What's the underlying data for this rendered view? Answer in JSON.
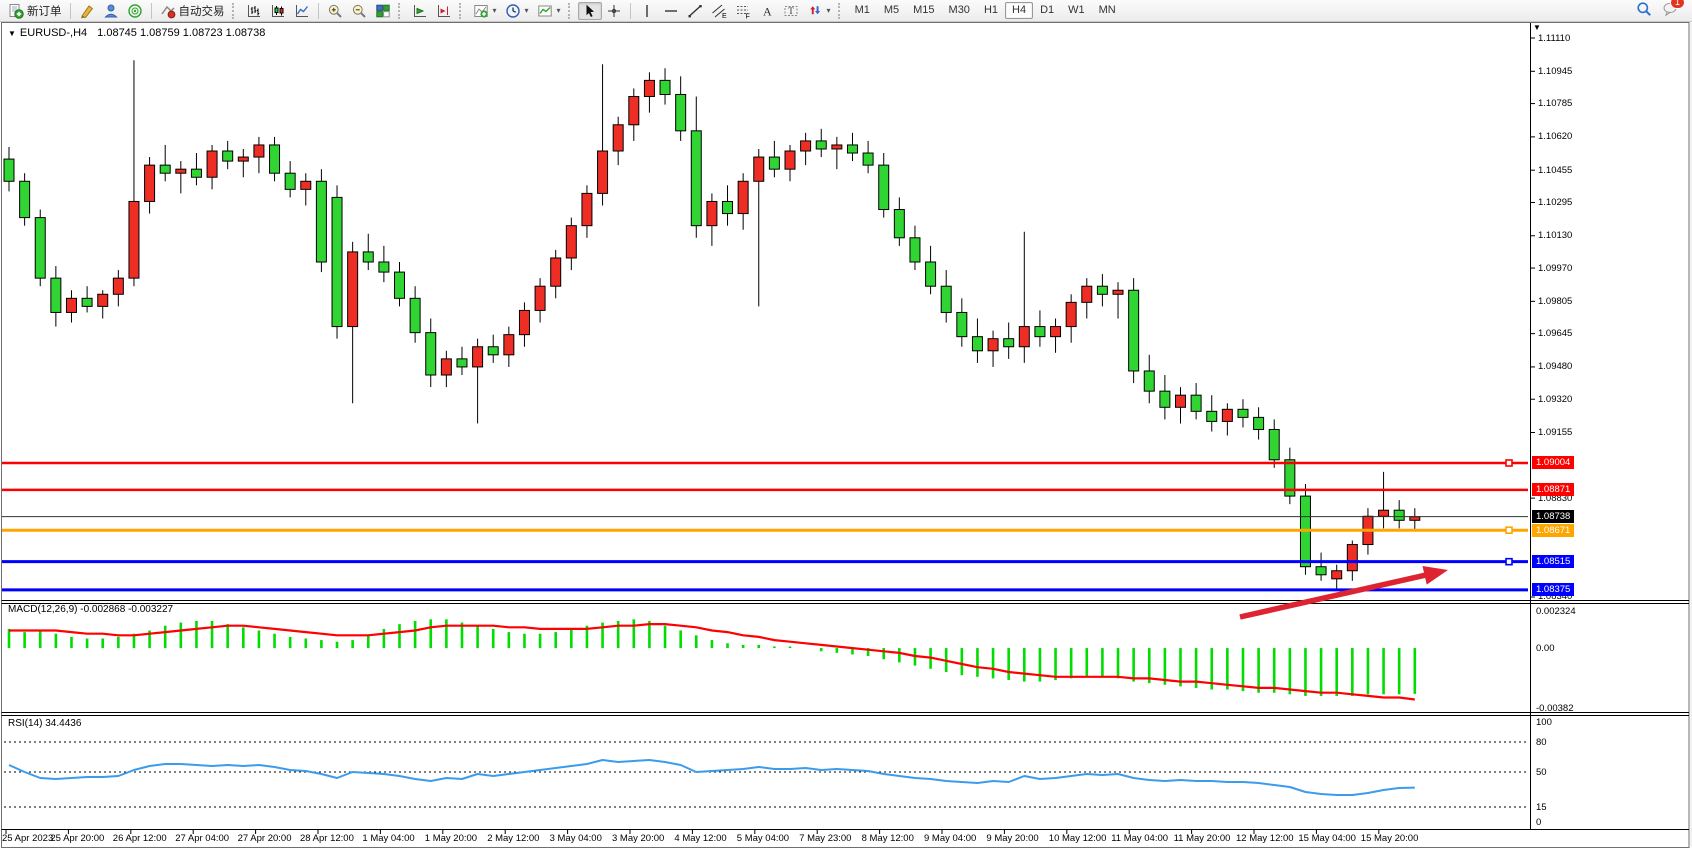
{
  "toolbar": {
    "items": [
      {
        "type": "button",
        "icon": "new-order-icon",
        "label": "新订单"
      },
      {
        "type": "sep"
      },
      {
        "type": "button",
        "icon": "crayon-icon"
      },
      {
        "type": "button",
        "icon": "profile-icon"
      },
      {
        "type": "button",
        "icon": "radar-icon"
      },
      {
        "type": "sep"
      },
      {
        "type": "button",
        "icon": "autotrade-icon",
        "label": "自动交易"
      },
      {
        "type": "grip"
      },
      {
        "type": "button",
        "icon": "bar-chart-icon"
      },
      {
        "type": "button",
        "icon": "candle-chart-icon"
      },
      {
        "type": "button",
        "icon": "line-chart-icon"
      },
      {
        "type": "sep"
      },
      {
        "type": "button",
        "icon": "zoom-in-icon"
      },
      {
        "type": "button",
        "icon": "zoom-out-icon"
      },
      {
        "type": "button",
        "icon": "tile-windows-icon"
      },
      {
        "type": "grip"
      },
      {
        "type": "button",
        "icon": "auto-scroll-icon"
      },
      {
        "type": "button",
        "icon": "chart-shift-icon"
      },
      {
        "type": "grip"
      },
      {
        "type": "button",
        "icon": "indicators-icon",
        "dropdown": true
      },
      {
        "type": "button",
        "icon": "periods-icon",
        "dropdown": true
      },
      {
        "type": "button",
        "icon": "templates-icon",
        "dropdown": true
      },
      {
        "type": "grip"
      },
      {
        "type": "button",
        "icon": "cursor-icon",
        "active": true
      },
      {
        "type": "button",
        "icon": "crosshair-icon"
      },
      {
        "type": "sep"
      },
      {
        "type": "button",
        "icon": "vline-tool-icon"
      },
      {
        "type": "button",
        "icon": "hline-tool-icon"
      },
      {
        "type": "button",
        "icon": "trendline-tool-icon"
      },
      {
        "type": "button",
        "icon": "channel-tool-icon"
      },
      {
        "type": "button",
        "icon": "fibonacci-tool-icon"
      },
      {
        "type": "button",
        "icon": "text-tool-icon"
      },
      {
        "type": "button",
        "icon": "label-tool-icon"
      },
      {
        "type": "button",
        "icon": "arrows-tool-icon",
        "dropdown": true
      },
      {
        "type": "grip"
      }
    ],
    "timeframes": [
      "M1",
      "M5",
      "M15",
      "M30",
      "H1",
      "H4",
      "D1",
      "W1",
      "MN"
    ],
    "active_timeframe": "H4",
    "search_icon": "search-icon",
    "chat_icon": "chat-icon",
    "chat_badge_count": "1"
  },
  "chart": {
    "title_symbol": "EURUSD-,H4",
    "title_ohlc": "1.08745 1.08759 1.08723 1.08738"
  },
  "indicators": {
    "macd_label": "MACD(12,26,9)",
    "macd_values": "-0.002868 -0.003227",
    "rsi_label": "RSI(14)",
    "rsi_value": "34.4436"
  },
  "chart_data": {
    "type": "candlestick",
    "symbol": "EURUSD-",
    "timeframe": "H4",
    "grid": false,
    "colors": {
      "up_candle": "#ee2e24",
      "down_candle": "#30d433",
      "candle_border": "#000000",
      "macd_histogram": "#00dd00",
      "macd_signal": "#ff0000",
      "rsi_line": "#3b9bed",
      "annotation_arrow": "#dd2430"
    },
    "y_axis_ticks": [
      "1.11110",
      "1.10945",
      "1.10785",
      "1.10620",
      "1.10455",
      "1.10295",
      "1.10130",
      "1.09970",
      "1.09805",
      "1.09645",
      "1.09480",
      "1.09320",
      "1.09155",
      "1.08830",
      "1.08340"
    ],
    "y_axis_range": [
      1.08325,
      1.11175
    ],
    "current_price": {
      "value": 1.08738,
      "label": "1.08738",
      "badge_color": "#000000"
    },
    "horizontal_lines": [
      {
        "price": 1.09004,
        "label": "1.09004",
        "color": "#ff0000",
        "width": 2.5,
        "marker": true
      },
      {
        "price": 1.08871,
        "label": "1.08871",
        "color": "#ff0000",
        "width": 2.5,
        "marker": false
      },
      {
        "price": 1.08671,
        "label": "1.08671",
        "color": "#ffa500",
        "width": 3,
        "marker": true
      },
      {
        "price": 1.08515,
        "label": "1.08515",
        "color": "#0000ff",
        "width": 3,
        "marker": true
      },
      {
        "price": 1.08375,
        "label": "1.08375",
        "color": "#0000ff",
        "width": 3,
        "marker": false
      }
    ],
    "x_labels": [
      "25 Apr 2023",
      "25 Apr 20:00",
      "26 Apr 12:00",
      "27 Apr 04:00",
      "27 Apr 20:00",
      "28 Apr 12:00",
      "1 May 04:00",
      "1 May 20:00",
      "2 May 12:00",
      "3 May 04:00",
      "3 May 20:00",
      "4 May 12:00",
      "5 May 04:00",
      "7 May 23:00",
      "8 May 12:00",
      "9 May 04:00",
      "9 May 20:00",
      "10 May 12:00",
      "11 May 04:00",
      "11 May 20:00",
      "12 May 12:00",
      "15 May 04:00",
      "15 May 20:00"
    ],
    "candles": [
      [
        1.1051,
        1.1057,
        1.1035,
        1.104
      ],
      [
        1.104,
        1.1044,
        1.1018,
        1.1022
      ],
      [
        1.1022,
        1.1026,
        1.0988,
        1.0992
      ],
      [
        1.0992,
        1.0998,
        1.0968,
        1.0975
      ],
      [
        1.0975,
        1.0986,
        1.097,
        1.0982
      ],
      [
        1.0982,
        1.0988,
        1.0975,
        1.0978
      ],
      [
        1.0978,
        1.0986,
        1.0972,
        1.0984
      ],
      [
        1.0984,
        1.0996,
        1.0978,
        1.0992
      ],
      [
        1.0992,
        1.11,
        1.0988,
        1.103
      ],
      [
        1.103,
        1.1052,
        1.1024,
        1.1048
      ],
      [
        1.1048,
        1.1058,
        1.104,
        1.1044
      ],
      [
        1.1044,
        1.105,
        1.1034,
        1.1046
      ],
      [
        1.1046,
        1.1054,
        1.1038,
        1.1042
      ],
      [
        1.1042,
        1.1058,
        1.1036,
        1.1055
      ],
      [
        1.1055,
        1.106,
        1.1046,
        1.105
      ],
      [
        1.105,
        1.1056,
        1.1042,
        1.1052
      ],
      [
        1.1052,
        1.1062,
        1.1044,
        1.1058
      ],
      [
        1.1058,
        1.1062,
        1.104,
        1.1044
      ],
      [
        1.1044,
        1.105,
        1.1032,
        1.1036
      ],
      [
        1.1036,
        1.1044,
        1.1028,
        1.104
      ],
      [
        1.104,
        1.1046,
        1.0995,
        1.1
      ],
      [
        1.1032,
        1.1038,
        1.0962,
        1.0968
      ],
      [
        1.0968,
        1.101,
        1.093,
        1.1005
      ],
      [
        1.1005,
        1.1014,
        1.0996,
        1.1
      ],
      [
        1.1,
        1.1008,
        1.099,
        1.0995
      ],
      [
        1.0995,
        1.1,
        1.0978,
        1.0982
      ],
      [
        1.0982,
        1.0988,
        1.096,
        1.0965
      ],
      [
        1.0965,
        1.0972,
        1.0938,
        1.0944
      ],
      [
        1.0944,
        1.0956,
        1.0938,
        1.0952
      ],
      [
        1.0952,
        1.0958,
        1.0944,
        1.0948
      ],
      [
        1.0948,
        1.0962,
        1.092,
        1.0958
      ],
      [
        1.0958,
        1.0964,
        1.095,
        1.0954
      ],
      [
        1.0954,
        1.0968,
        1.0948,
        1.0964
      ],
      [
        1.0964,
        1.098,
        1.0958,
        1.0976
      ],
      [
        1.0976,
        1.0992,
        1.097,
        1.0988
      ],
      [
        1.0988,
        1.1006,
        1.0982,
        1.1002
      ],
      [
        1.1002,
        1.1022,
        1.0996,
        1.1018
      ],
      [
        1.1018,
        1.1038,
        1.1012,
        1.1034
      ],
      [
        1.1034,
        1.1098,
        1.1028,
        1.1055
      ],
      [
        1.1055,
        1.1072,
        1.1048,
        1.1068
      ],
      [
        1.1068,
        1.1086,
        1.106,
        1.1082
      ],
      [
        1.1082,
        1.1094,
        1.1074,
        1.109
      ],
      [
        1.109,
        1.1096,
        1.1078,
        1.1083
      ],
      [
        1.1083,
        1.1092,
        1.106,
        1.1065
      ],
      [
        1.1065,
        1.1082,
        1.1012,
        1.1018
      ],
      [
        1.1018,
        1.1034,
        1.1008,
        1.103
      ],
      [
        1.103,
        1.1038,
        1.1018,
        1.1024
      ],
      [
        1.1024,
        1.1044,
        1.1016,
        1.104
      ],
      [
        1.104,
        1.1056,
        1.0978,
        1.1052
      ],
      [
        1.1052,
        1.106,
        1.1042,
        1.1046
      ],
      [
        1.1046,
        1.1058,
        1.104,
        1.1055
      ],
      [
        1.1055,
        1.1064,
        1.1048,
        1.106
      ],
      [
        1.106,
        1.1066,
        1.1052,
        1.1056
      ],
      [
        1.1056,
        1.1062,
        1.1046,
        1.1058
      ],
      [
        1.1058,
        1.1064,
        1.105,
        1.1054
      ],
      [
        1.1054,
        1.106,
        1.1044,
        1.1048
      ],
      [
        1.1048,
        1.1054,
        1.1022,
        1.1026
      ],
      [
        1.1026,
        1.1032,
        1.1008,
        1.1012
      ],
      [
        1.1012,
        1.1018,
        1.0996,
        1.1
      ],
      [
        1.1,
        1.1008,
        1.0984,
        1.0988
      ],
      [
        1.0988,
        1.0996,
        1.097,
        1.0975
      ],
      [
        1.0975,
        1.0982,
        1.0958,
        1.0963
      ],
      [
        1.0963,
        1.0972,
        1.095,
        1.0956
      ],
      [
        1.0956,
        1.0966,
        1.0948,
        1.0962
      ],
      [
        1.0962,
        1.097,
        1.0952,
        1.0958
      ],
      [
        1.0958,
        1.1015,
        1.095,
        1.0968
      ],
      [
        1.0968,
        1.0976,
        1.0958,
        1.0963
      ],
      [
        1.0963,
        1.0972,
        1.0955,
        1.0968
      ],
      [
        1.0968,
        1.0984,
        1.096,
        1.098
      ],
      [
        1.098,
        1.0992,
        1.0972,
        1.0988
      ],
      [
        1.0988,
        1.0994,
        1.0978,
        1.0984
      ],
      [
        1.0984,
        1.099,
        1.0972,
        1.0986
      ],
      [
        1.0986,
        1.0992,
        1.094,
        1.0946
      ],
      [
        1.0946,
        1.0954,
        1.093,
        1.0936
      ],
      [
        1.0936,
        1.0944,
        1.0922,
        1.0928
      ],
      [
        1.0928,
        1.0938,
        1.092,
        1.0934
      ],
      [
        1.0934,
        1.094,
        1.0922,
        1.0926
      ],
      [
        1.0926,
        1.0934,
        1.0916,
        1.0921
      ],
      [
        1.0921,
        1.093,
        1.0914,
        1.0927
      ],
      [
        1.0927,
        1.0932,
        1.0918,
        1.0923
      ],
      [
        1.0923,
        1.0928,
        1.0912,
        1.0917
      ],
      [
        1.0917,
        1.0922,
        1.0898,
        1.0902
      ],
      [
        1.0902,
        1.0908,
        1.088,
        1.0884
      ],
      [
        1.0884,
        1.089,
        1.0845,
        1.0849
      ],
      [
        1.0849,
        1.0856,
        1.0842,
        1.0845
      ],
      [
        1.0843,
        1.085,
        1.0837,
        1.0847
      ],
      [
        1.0847,
        1.0862,
        1.0842,
        1.086
      ],
      [
        1.086,
        1.0878,
        1.0855,
        1.0874
      ],
      [
        1.0874,
        1.0896,
        1.0868,
        1.0877
      ],
      [
        1.0877,
        1.0882,
        1.0868,
        1.0872
      ],
      [
        1.0872,
        1.0878,
        1.0867,
        1.08738
      ]
    ],
    "macd": {
      "label": "MACD(12,26,9)",
      "current_values": [
        -0.002868,
        -0.003227
      ],
      "axis_labels": [
        "0.002324",
        "0.00",
        "-0.00382"
      ],
      "axis_values": [
        0.002324,
        0,
        -0.00382
      ],
      "histogram": [
        0.0012,
        0.001,
        0.0011,
        0.0009,
        0.0007,
        0.0006,
        0.0006,
        0.0007,
        0.0009,
        0.0011,
        0.0014,
        0.0016,
        0.0017,
        0.0017,
        0.0015,
        0.0013,
        0.0011,
        0.0009,
        0.0007,
        0.0006,
        0.0005,
        0.0004,
        0.0005,
        0.0008,
        0.0012,
        0.0015,
        0.0017,
        0.0018,
        0.0018,
        0.0016,
        0.0014,
        0.0012,
        0.001,
        0.0009,
        0.0009,
        0.001,
        0.0012,
        0.0014,
        0.0016,
        0.0017,
        0.0018,
        0.0017,
        0.0014,
        0.0011,
        0.0008,
        0.0005,
        0.0003,
        0.0002,
        0.0002,
        0.0001,
        0.0001,
        0.0,
        -0.0002,
        -0.0003,
        -0.0004,
        -0.0005,
        -0.0007,
        -0.0009,
        -0.0011,
        -0.0013,
        -0.0015,
        -0.0017,
        -0.0018,
        -0.0019,
        -0.002,
        -0.0021,
        -0.0021,
        -0.002,
        -0.0019,
        -0.0018,
        -0.0018,
        -0.0019,
        -0.0021,
        -0.0022,
        -0.0023,
        -0.0024,
        -0.0025,
        -0.0026,
        -0.0026,
        -0.0027,
        -0.0028,
        -0.0028,
        -0.0029,
        -0.003,
        -0.003,
        -0.003,
        -0.003,
        -0.0029,
        -0.0029,
        -0.0029,
        -0.00287
      ],
      "signal": [
        0.0011,
        0.0011,
        0.0011,
        0.0011,
        0.001,
        0.0009,
        0.0009,
        0.0008,
        0.0008,
        0.0009,
        0.001,
        0.0011,
        0.0012,
        0.0013,
        0.0014,
        0.0014,
        0.0013,
        0.0012,
        0.0011,
        0.001,
        0.0009,
        0.0008,
        0.0008,
        0.0008,
        0.0009,
        0.001,
        0.0011,
        0.0013,
        0.0014,
        0.0014,
        0.0014,
        0.0014,
        0.0013,
        0.0013,
        0.0012,
        0.0012,
        0.0012,
        0.0012,
        0.0013,
        0.0014,
        0.0014,
        0.0015,
        0.0015,
        0.0014,
        0.0013,
        0.0011,
        0.001,
        0.0008,
        0.0007,
        0.0005,
        0.0004,
        0.0003,
        0.0002,
        0.0001,
        0.0,
        -0.0001,
        -0.0002,
        -0.0003,
        -0.0005,
        -0.0006,
        -0.0008,
        -0.001,
        -0.0012,
        -0.0013,
        -0.0015,
        -0.0016,
        -0.0017,
        -0.0018,
        -0.0018,
        -0.0018,
        -0.0018,
        -0.0018,
        -0.0019,
        -0.0019,
        -0.002,
        -0.0021,
        -0.0021,
        -0.0022,
        -0.0023,
        -0.0024,
        -0.0025,
        -0.0025,
        -0.0026,
        -0.0027,
        -0.0028,
        -0.0028,
        -0.0029,
        -0.003,
        -0.0031,
        -0.0031,
        -0.003227
      ]
    },
    "rsi": {
      "label": "RSI(14)",
      "current_value": 34.4436,
      "axis_labels": [
        "100",
        "80",
        "50",
        "15",
        "0"
      ],
      "levels": [
        80,
        50,
        15
      ],
      "series": [
        57,
        50,
        44,
        43,
        44,
        45,
        45,
        46,
        52,
        56,
        58,
        58,
        57,
        56,
        57,
        56,
        57,
        55,
        52,
        51,
        48,
        44,
        50,
        49,
        48,
        46,
        43,
        41,
        44,
        43,
        48,
        46,
        48,
        50,
        52,
        54,
        56,
        58,
        62,
        60,
        61,
        62,
        60,
        57,
        50,
        51,
        52,
        53,
        55,
        53,
        53,
        54,
        52,
        53,
        52,
        51,
        48,
        46,
        44,
        43,
        41,
        40,
        39,
        41,
        40,
        46,
        43,
        44,
        46,
        48,
        47,
        48,
        44,
        42,
        41,
        42,
        41,
        41,
        40,
        40,
        39,
        37,
        35,
        30,
        28,
        27,
        27,
        29,
        32,
        34,
        34.4
      ]
    },
    "annotation_arrow": {
      "from": [
        1240,
        617
      ],
      "to": [
        1448,
        570
      ],
      "color": "#dd2430"
    }
  }
}
